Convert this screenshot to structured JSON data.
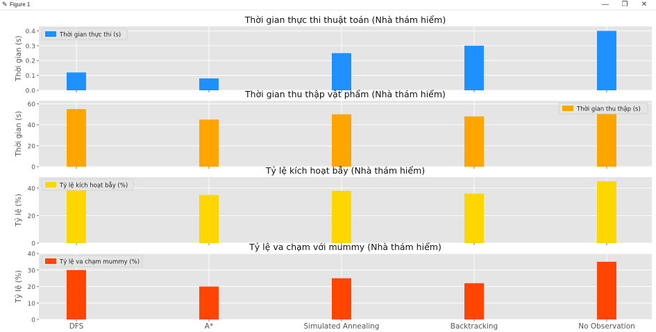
{
  "window": {
    "title": "Figure 1",
    "icon": "matplotlib-figure-icon",
    "controls": {
      "minimize": "—",
      "maximize": "❐",
      "close": "✕"
    }
  },
  "chart_data": [
    {
      "type": "bar",
      "title": "Thời gian thực thi thuật toán (Nhà thám hiểm)",
      "ylabel": "Thời gian (s)",
      "categories": [
        "DFS",
        "A*",
        "Simulated Annealing",
        "Backtracking",
        "No Observation"
      ],
      "series": [
        {
          "name": "Thời gian thực thi (s)",
          "values": [
            0.12,
            0.08,
            0.25,
            0.3,
            0.4
          ],
          "color": "#1e90ff"
        }
      ],
      "ylim": [
        0,
        0.43
      ],
      "yticks": [
        "0.0",
        "0.1",
        "0.2",
        "0.3",
        "0.4"
      ],
      "ytick_values": [
        0,
        0.1,
        0.2,
        0.3,
        0.4
      ],
      "legend": "top-left",
      "grid": true
    },
    {
      "type": "bar",
      "title": "Thời gian thu thập vật phẩm (Nhà thám hiểm)",
      "ylabel": "Thời gian (s)",
      "categories": [
        "DFS",
        "A*",
        "Simulated Annealing",
        "Backtracking",
        "No Observation"
      ],
      "series": [
        {
          "name": "Thời gian thu thập (s)",
          "values": [
            55,
            45,
            50,
            48,
            52
          ],
          "color": "#ffa500"
        }
      ],
      "ylim": [
        0,
        63
      ],
      "yticks": [
        "0",
        "20",
        "40",
        "60"
      ],
      "ytick_values": [
        0,
        20,
        40,
        60
      ],
      "legend": "top-right",
      "grid": true
    },
    {
      "type": "bar",
      "title": "Tỷ lệ kích hoạt bẫy (Nhà thám hiểm)",
      "ylabel": "Tỷ lệ (%)",
      "categories": [
        "DFS",
        "A*",
        "Simulated Annealing",
        "Backtracking",
        "No Observation"
      ],
      "series": [
        {
          "name": "Tỷ lệ kích hoạt bẫy (%)",
          "values": [
            40,
            35,
            38,
            36,
            45
          ],
          "color": "#ffd700"
        }
      ],
      "ylim": [
        0,
        48
      ],
      "yticks": [
        "0",
        "20",
        "40"
      ],
      "ytick_values": [
        0,
        20,
        40
      ],
      "legend": "top-left",
      "grid": true
    },
    {
      "type": "bar",
      "title": "Tỷ lệ va chạm với mummy (Nhà thám hiểm)",
      "ylabel": "Tỷ lệ (%)",
      "categories": [
        "DFS",
        "A*",
        "Simulated Annealing",
        "Backtracking",
        "No Observation"
      ],
      "series": [
        {
          "name": "Tỷ lệ va chạm mummy (%)",
          "values": [
            30,
            20,
            25,
            22,
            35
          ],
          "color": "#ff4500"
        }
      ],
      "ylim": [
        0,
        40
      ],
      "yticks": [
        "0",
        "10",
        "20",
        "30",
        "40"
      ],
      "ytick_values": [
        0,
        10,
        20,
        30,
        40
      ],
      "legend": "top-left",
      "grid": true,
      "show_xticklabels": true
    }
  ]
}
